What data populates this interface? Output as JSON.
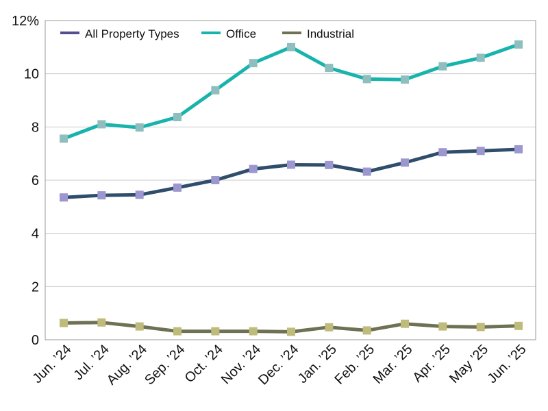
{
  "chart_data": {
    "type": "line",
    "title": "",
    "xlabel": "",
    "ylabel": "",
    "ylim": [
      0,
      12
    ],
    "y_ticks": [
      0,
      2,
      4,
      6,
      8,
      10,
      12
    ],
    "y_tick_labels": [
      "0",
      "2",
      "4",
      "6",
      "8",
      "10",
      "12%"
    ],
    "grid": true,
    "legend_position": "top-left",
    "categories": [
      "Jun. ’24",
      "Jul. ’24",
      "Aug. ’24",
      "Sep. ’24",
      "Oct. ’24",
      "Nov. ’24",
      "Dec. ’24",
      "Jan. ’25",
      "Feb. ’25",
      "Mar. ’25",
      "Apr. ’25",
      "May ’25",
      "Jun. ’25"
    ],
    "series": [
      {
        "name": "All Property Types",
        "legend_color": "#544d8e",
        "line_color": "#2e4e6b",
        "marker_color": "#9c97cf",
        "values": [
          5.35,
          5.43,
          5.45,
          5.72,
          6.0,
          6.42,
          6.58,
          6.57,
          6.32,
          6.66,
          7.05,
          7.1,
          7.16
        ]
      },
      {
        "name": "Office",
        "legend_color": "#19b3ad",
        "line_color": "#19b3ad",
        "marker_color": "#8ebebd",
        "values": [
          7.56,
          8.1,
          7.98,
          8.37,
          9.38,
          10.4,
          11.0,
          10.22,
          9.8,
          9.78,
          10.28,
          10.6,
          11.1
        ]
      },
      {
        "name": "Industrial",
        "legend_color": "#6e7154",
        "line_color": "#6e7154",
        "marker_color": "#bfbb7b",
        "values": [
          0.63,
          0.65,
          0.5,
          0.32,
          0.32,
          0.32,
          0.3,
          0.47,
          0.35,
          0.6,
          0.5,
          0.48,
          0.52
        ]
      }
    ]
  }
}
